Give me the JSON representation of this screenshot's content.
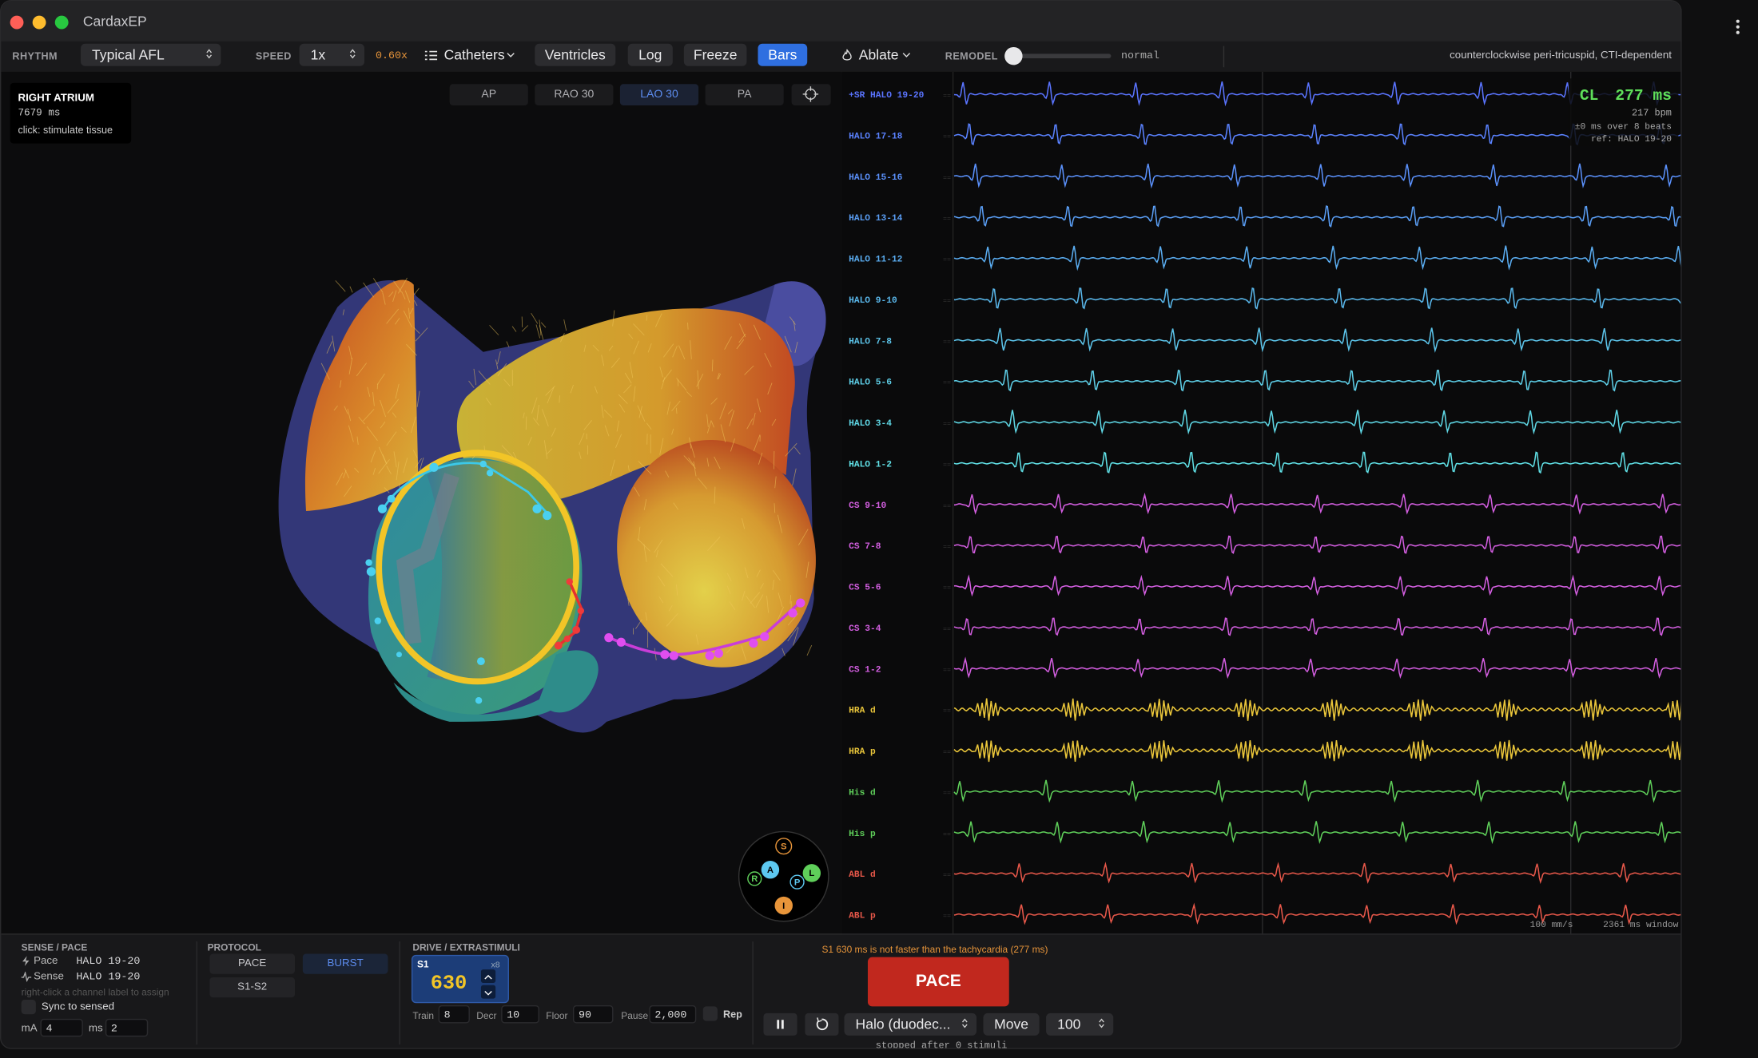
{
  "window": {
    "title": "CardaxEP"
  },
  "toolbar": {
    "rhythm_label": "RHYTHM",
    "rhythm": "Typical AFL",
    "speed_label": "SPEED",
    "speed": "1x",
    "speed_factor": "0.60x",
    "buttons": [
      "Catheters",
      "Ventricles",
      "Log",
      "Freeze",
      "Bars",
      "Ablate"
    ],
    "remodel_label": "REMODEL",
    "remodel_state": "normal",
    "status": "counterclockwise peri-tricuspid, CTI-dependent"
  },
  "viewer": {
    "info": {
      "title": "RIGHT ATRIUM",
      "time": "7679 ms",
      "hint": "click: stimulate tissue"
    },
    "views": [
      "AP",
      "RAO 30",
      "LAO 30",
      "PA"
    ],
    "orientation": [
      "S",
      "A",
      "L",
      "R",
      "P",
      "I"
    ]
  },
  "egm": {
    "channels": [
      {
        "label": "+SR HALO 19-20",
        "color": "#5a74ff"
      },
      {
        "label": "HALO 17-18",
        "color": "#5a82ff"
      },
      {
        "label": "HALO 15-16",
        "color": "#5a90fa"
      },
      {
        "label": "HALO 13-14",
        "color": "#5a9ef5"
      },
      {
        "label": "HALO 11-12",
        "color": "#5aacf0"
      },
      {
        "label": "HALO 9-10",
        "color": "#5ab8ec"
      },
      {
        "label": "HALO 7-8",
        "color": "#5cc4ea"
      },
      {
        "label": "HALO 5-6",
        "color": "#5ecfe8"
      },
      {
        "label": "HALO 3-4",
        "color": "#5fd8e6"
      },
      {
        "label": "HALO 1-2",
        "color": "#60e0e6"
      },
      {
        "label": "CS 9-10",
        "color": "#d35ee0"
      },
      {
        "label": "CS 7-8",
        "color": "#d35ee0"
      },
      {
        "label": "CS 5-6",
        "color": "#d35ee0"
      },
      {
        "label": "CS 3-4",
        "color": "#d35ee0"
      },
      {
        "label": "CS 1-2",
        "color": "#d35ee0"
      },
      {
        "label": "HRA d",
        "color": "#e9c53a"
      },
      {
        "label": "HRA p",
        "color": "#e9c53a"
      },
      {
        "label": "His d",
        "color": "#5fcf5a"
      },
      {
        "label": "His p",
        "color": "#5fcf5a"
      },
      {
        "label": "ABL d",
        "color": "#e8584a"
      },
      {
        "label": "ABL p",
        "color": "#e8584a"
      }
    ],
    "readout": {
      "cl_label": "CL",
      "cl": "277 ms",
      "rate": "217 bpm",
      "stability": "±0 ms over 8 beats",
      "ref": "ref: HALO 19-20"
    },
    "sweep": "100 mm/s",
    "window": "2361 ms window"
  },
  "sense_pace": {
    "title": "SENSE / PACE",
    "pace_label": "Pace",
    "pace": "HALO 19-20",
    "sense_label": "Sense",
    "sense": "HALO 19-20",
    "hint": "right-click a channel label to assign",
    "sync": "Sync to sensed",
    "ma_label": "mA",
    "ma": 4,
    "ms_label": "ms",
    "ms": 2
  },
  "protocol": {
    "title": "PROTOCOL",
    "options": [
      "PACE",
      "BURST",
      "S1-S2"
    ]
  },
  "drive": {
    "title": "DRIVE / EXTRASTIMULI",
    "s1_label": "S1",
    "count": "x8",
    "s1": 630,
    "train_label": "Train",
    "train": 8,
    "decr_label": "Decr",
    "decr": 10,
    "floor_label": "Floor",
    "floor": 90,
    "pause_label": "Pause",
    "pause": "2,000",
    "rep_label": "Rep"
  },
  "pace": {
    "warning": "S1 630 ms is not faster than the tachycardia (277 ms)",
    "button": "PACE",
    "catheter": "Halo (duodec...",
    "move": "Move",
    "step": 100,
    "status": "stopped after 0 stimuli"
  }
}
